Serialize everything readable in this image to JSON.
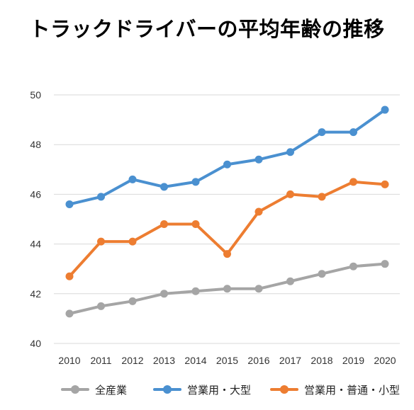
{
  "chart_data": {
    "type": "line",
    "title": "トラックドライバーの平均年齢の推移",
    "categories": [
      "2010",
      "2011",
      "2012",
      "2013",
      "2014",
      "2015",
      "2016",
      "2017",
      "2018",
      "2019",
      "2020"
    ],
    "ylim": [
      40,
      50
    ],
    "yticks": [
      "40",
      "42",
      "44",
      "46",
      "48",
      "50"
    ],
    "grid": true,
    "legend_position": "bottom",
    "series": [
      {
        "name": "全産業",
        "color": "#A5A5A5",
        "values": [
          41.2,
          41.5,
          41.7,
          42.0,
          42.1,
          42.2,
          42.2,
          42.5,
          42.8,
          43.1,
          43.2
        ]
      },
      {
        "name": "営業用・大型",
        "color": "#4A90D0",
        "values": [
          45.6,
          45.9,
          46.6,
          46.3,
          46.5,
          47.2,
          47.4,
          47.7,
          48.5,
          48.5,
          49.4
        ]
      },
      {
        "name": "営業用・普通・小型",
        "color": "#ED7D31",
        "values": [
          42.7,
          44.1,
          44.1,
          44.8,
          44.8,
          43.6,
          45.3,
          46.0,
          45.9,
          46.5,
          46.4
        ]
      }
    ]
  }
}
